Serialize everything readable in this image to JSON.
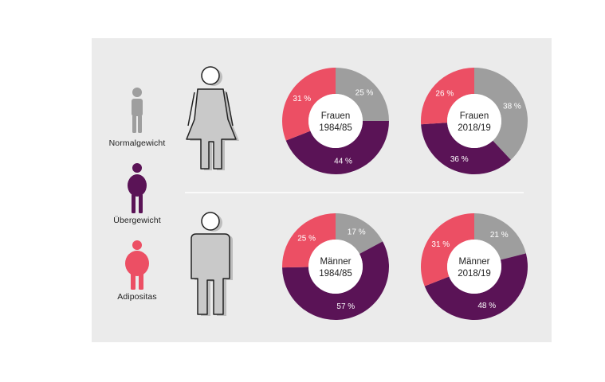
{
  "legend": {
    "normal": "Normalgewicht",
    "over": "Übergewicht",
    "obese": "Adipositas"
  },
  "colors": {
    "normal": "#9e9e9e",
    "over": "#5a1356",
    "obese": "#ec4f64",
    "background": "#ebebeb",
    "divider": "#ffffff"
  },
  "chart_data": [
    {
      "type": "pie",
      "title": [
        "Frauen",
        "1984/85"
      ],
      "categories": [
        "Normalgewicht",
        "Übergewicht",
        "Adipositas"
      ],
      "values": [
        25,
        44,
        31
      ],
      "labels": [
        "25 %",
        "44 %",
        "31 %"
      ]
    },
    {
      "type": "pie",
      "title": [
        "Frauen",
        "2018/19"
      ],
      "categories": [
        "Normalgewicht",
        "Übergewicht",
        "Adipositas"
      ],
      "values": [
        38,
        36,
        26
      ],
      "labels": [
        "38 %",
        "36 %",
        "26 %"
      ]
    },
    {
      "type": "pie",
      "title": [
        "Männer",
        "1984/85"
      ],
      "categories": [
        "Normalgewicht",
        "Übergewicht",
        "Adipositas"
      ],
      "values": [
        17,
        57,
        25
      ],
      "labels": [
        "17 %",
        "57 %",
        "25 %"
      ]
    },
    {
      "type": "pie",
      "title": [
        "Männer",
        "2018/19"
      ],
      "categories": [
        "Normalgewicht",
        "Übergewicht",
        "Adipositas"
      ],
      "values": [
        21,
        48,
        31
      ],
      "labels": [
        "21 %",
        "48 %",
        "31 %"
      ]
    }
  ]
}
